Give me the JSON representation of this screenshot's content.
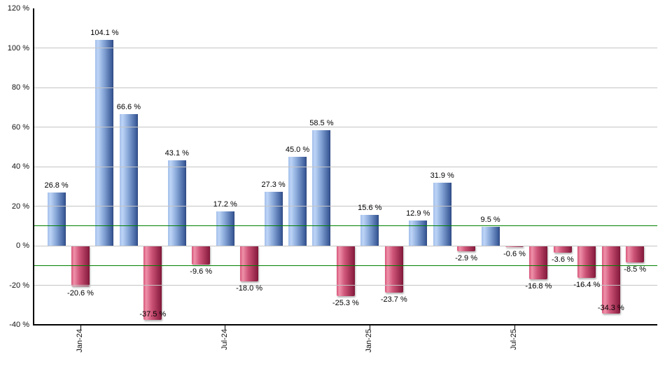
{
  "chart_data": {
    "type": "bar",
    "title": "",
    "xlabel": "",
    "ylabel": "",
    "ylim": [
      -40,
      120
    ],
    "y_tick_step": 20,
    "grid": true,
    "legend": "none",
    "y_axis_ticks": [
      {
        "label": "120 %",
        "value": 120
      },
      {
        "label": "100 %",
        "value": 100
      },
      {
        "label": "80 %",
        "value": 80
      },
      {
        "label": "60 %",
        "value": 60
      },
      {
        "label": "40 %",
        "value": 40
      },
      {
        "label": "20 %",
        "value": 20
      },
      {
        "label": "0 %",
        "value": 0
      },
      {
        "label": "-20 %",
        "value": -20
      },
      {
        "label": "-40 %",
        "value": -40
      }
    ],
    "gridline_values": [
      100,
      80,
      60,
      40,
      20,
      0,
      -20
    ],
    "reference_lines": [
      {
        "value": 10,
        "color": "#008000"
      },
      {
        "value": -10,
        "color": "#008000"
      }
    ],
    "bars": [
      {
        "value": 26.8,
        "label": "26.8 %"
      },
      {
        "value": -20.6,
        "label": "-20.6 %"
      },
      {
        "value": 104.1,
        "label": "104.1 %"
      },
      {
        "value": 66.6,
        "label": "66.6 %"
      },
      {
        "value": -37.5,
        "label": "-37.5 %"
      },
      {
        "value": 43.1,
        "label": "43.1 %"
      },
      {
        "value": -9.6,
        "label": "-9.6 %"
      },
      {
        "value": 17.2,
        "label": "17.2 %"
      },
      {
        "value": -18.0,
        "label": "-18.0 %"
      },
      {
        "value": 27.3,
        "label": "27.3 %"
      },
      {
        "value": 45.0,
        "label": "45.0 %"
      },
      {
        "value": 58.5,
        "label": "58.5 %"
      },
      {
        "value": -25.3,
        "label": "-25.3 %"
      },
      {
        "value": 15.6,
        "label": "15.6 %"
      },
      {
        "value": -23.7,
        "label": "-23.7 %"
      },
      {
        "value": 12.9,
        "label": "12.9 %"
      },
      {
        "value": 31.9,
        "label": "31.9 %"
      },
      {
        "value": -2.9,
        "label": "-2.9 %"
      },
      {
        "value": 9.5,
        "label": "9.5 %"
      },
      {
        "value": -0.6,
        "label": "-0.6 %"
      },
      {
        "value": -16.8,
        "label": "-16.8 %"
      },
      {
        "value": -3.6,
        "label": "-3.6 %"
      },
      {
        "value": -16.4,
        "label": "-16.4 %"
      },
      {
        "value": -34.3,
        "label": "-34.3 %"
      },
      {
        "value": -8.5,
        "label": "-8.5 %"
      }
    ],
    "x_ticks": [
      {
        "label": "Jan-24",
        "bar_index": 1
      },
      {
        "label": "Jul-24",
        "bar_index": 7
      },
      {
        "label": "Jan-25",
        "bar_index": 13
      },
      {
        "label": "Jul-25",
        "bar_index": 19
      }
    ],
    "colors": {
      "positive_bar_light": "#bdd4f6",
      "positive_bar_dark": "#3c5c9a",
      "negative_bar_light": "#ef91a9",
      "negative_bar_dark": "#8e2144",
      "reference_line": "#008000",
      "gridline": "#c4c4c4",
      "axis": "#000000",
      "background": "#ffffff",
      "label_text": "#000000"
    }
  }
}
